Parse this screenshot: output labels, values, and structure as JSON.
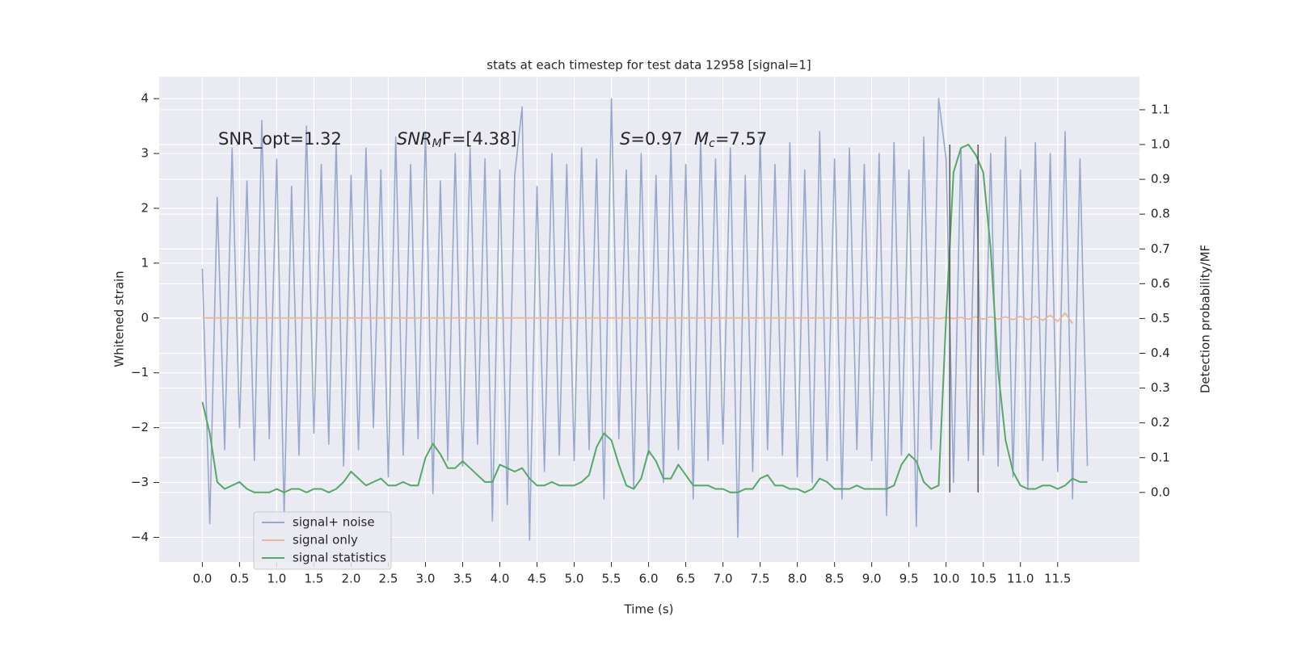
{
  "chart_data": {
    "type": "line",
    "title": "stats at each timestep for test data 12958 [signal=1]",
    "xlabel": "Time (s)",
    "ylabel": "Whitened strain",
    "y2label": "Detection probability/MF",
    "annotations": [
      [
        {
          "text": "SNR_opt=1.32",
          "style": "normal"
        }
      ],
      [
        {
          "text": "SNR",
          "style": "italic"
        },
        {
          "text": "M",
          "style": "sub"
        },
        {
          "text": "F=[4.38]",
          "style": "normal"
        }
      ],
      [
        {
          "text": "S",
          "style": "italic"
        },
        {
          "text": "=0.97",
          "style": "normal"
        }
      ],
      [
        {
          "text": "M",
          "style": "italic"
        },
        {
          "text": "c",
          "style": "sub"
        },
        {
          "text": "=7.57",
          "style": "normal"
        }
      ]
    ],
    "xlim": [
      -0.58,
      12.6
    ],
    "ylim": [
      -4.45,
      4.4
    ],
    "y2lim": [
      -0.2,
      1.195
    ],
    "xticks": [
      {
        "value": 0,
        "label": "0.0"
      },
      0.5,
      {
        "value": 1,
        "label": "1.0"
      },
      1.5,
      {
        "value": 2,
        "label": "2.0"
      },
      2.5,
      {
        "value": 3,
        "label": "3.0"
      },
      3.5,
      {
        "value": 4,
        "label": "4.0"
      },
      4.5,
      {
        "value": 5,
        "label": "5.0"
      },
      5.5,
      {
        "value": 6,
        "label": "6.0"
      },
      6.5,
      {
        "value": 7,
        "label": "7.0"
      },
      7.5,
      {
        "value": 8,
        "label": "8.0"
      },
      8.5,
      {
        "value": 9,
        "label": "9.0"
      },
      9.5,
      {
        "value": 10,
        "label": "10.0"
      },
      10.5,
      {
        "value": 11,
        "label": "11.0"
      },
      11.5
    ],
    "yticks": [
      {
        "value": -4,
        "label": "−4"
      },
      {
        "value": -3,
        "label": "−3"
      },
      {
        "value": -2,
        "label": "−2"
      },
      {
        "value": -1,
        "label": "−1"
      },
      0,
      1,
      2,
      3,
      4
    ],
    "y2ticks": [
      {
        "value": 0,
        "label": "0.0"
      },
      0.1,
      0.2,
      0.3,
      0.4,
      0.5,
      0.6,
      0.7,
      0.8,
      0.9,
      {
        "value": 1,
        "label": "1.0"
      },
      1.1
    ],
    "grid": true,
    "legend": "lower left",
    "vlines": [
      10.05,
      10.43
    ],
    "vline_span": [
      0,
      1.0
    ],
    "vline_color": "#555555",
    "x": [
      0,
      0.1,
      0.2,
      0.3,
      0.4,
      0.5,
      0.6,
      0.7,
      0.8,
      0.9,
      1,
      1.1,
      1.2,
      1.3,
      1.4,
      1.5,
      1.6,
      1.7,
      1.8,
      1.9,
      2,
      2.1,
      2.2,
      2.3,
      2.4,
      2.5,
      2.6,
      2.7,
      2.8,
      2.9,
      3,
      3.1,
      3.2,
      3.3,
      3.4,
      3.5,
      3.6,
      3.7,
      3.8,
      3.9,
      4,
      4.1,
      4.2,
      4.3,
      4.4,
      4.5,
      4.6,
      4.7,
      4.8,
      4.9,
      5,
      5.1,
      5.2,
      5.3,
      5.4,
      5.5,
      5.6,
      5.7,
      5.8,
      5.9,
      6,
      6.1,
      6.2,
      6.3,
      6.4,
      6.5,
      6.6,
      6.7,
      6.8,
      6.9,
      7,
      7.1,
      7.2,
      7.3,
      7.4,
      7.5,
      7.6,
      7.7,
      7.8,
      7.9,
      8,
      8.1,
      8.2,
      8.3,
      8.4,
      8.5,
      8.6,
      8.7,
      8.8,
      8.9,
      9,
      9.1,
      9.2,
      9.3,
      9.4,
      9.5,
      9.6,
      9.7,
      9.8,
      9.9,
      10,
      10.1,
      10.2,
      10.3,
      10.4,
      10.5,
      10.6,
      10.7,
      10.8,
      10.9,
      11,
      11.1,
      11.2,
      11.3,
      11.4,
      11.5,
      11.6,
      11.7,
      11.8,
      11.9
    ],
    "series": [
      {
        "name": "signal+ noise",
        "color": "#98a8cc",
        "values": [
          0.9,
          -3.75,
          2.2,
          -2.4,
          3.1,
          -2.0,
          2.5,
          -2.6,
          3.6,
          -2.2,
          2.9,
          -3.6,
          2.4,
          -2.5,
          3.5,
          -2.1,
          2.8,
          -2.3,
          3.2,
          -2.7,
          2.6,
          -2.4,
          3.1,
          -2.0,
          2.7,
          -2.9,
          3.3,
          -2.5,
          2.8,
          -2.2,
          3.4,
          -3.2,
          2.5,
          -2.6,
          3.0,
          -2.7,
          3.1,
          -2.3,
          2.9,
          -3.7,
          2.7,
          -3.4,
          2.6,
          3.85,
          -4.05,
          2.4,
          -2.8,
          3.0,
          -2.5,
          2.8,
          -2.6,
          3.1,
          -2.4,
          2.9,
          -3.3,
          4.0,
          -2.2,
          2.7,
          -3.1,
          3.0,
          -2.5,
          2.6,
          -3.0,
          3.2,
          -2.4,
          2.8,
          -3.3,
          3.3,
          -2.6,
          2.9,
          -2.3,
          3.1,
          -4.0,
          2.6,
          -2.8,
          3.3,
          -2.4,
          2.8,
          -2.5,
          3.2,
          -2.9,
          2.7,
          -3.0,
          3.4,
          -2.6,
          2.9,
          -3.3,
          3.1,
          -2.4,
          2.8,
          -2.6,
          3.0,
          -3.6,
          3.2,
          -2.5,
          2.7,
          -3.8,
          3.3,
          -2.4,
          4.0,
          2.9,
          -3.0,
          3.1,
          -2.6,
          2.8,
          -2.5,
          3.0,
          -2.7,
          3.3,
          -2.9,
          2.7,
          -3.1,
          3.2,
          -2.6,
          3.0,
          -2.8,
          3.4,
          -3.3,
          2.9,
          -2.7
        ]
      },
      {
        "name": "signal only",
        "color": "#e8b89c",
        "values": [
          0,
          0,
          0,
          0,
          0,
          0,
          0,
          0,
          0,
          0,
          0,
          0,
          0,
          0,
          0,
          0,
          0,
          0,
          0,
          0,
          0,
          0,
          0,
          0,
          0,
          0,
          0,
          0,
          0,
          0,
          0,
          0,
          0,
          0,
          0,
          0,
          0,
          0,
          0,
          0,
          0,
          0,
          0,
          0,
          0,
          0,
          0,
          0,
          0,
          0,
          0,
          0,
          0,
          0,
          0,
          0,
          0,
          0,
          0,
          0,
          0,
          0,
          0,
          0,
          0,
          0,
          0,
          0,
          0,
          0,
          0,
          0,
          0,
          0,
          0,
          0,
          0,
          0,
          0,
          0,
          0,
          0,
          0,
          0,
          0,
          0,
          0,
          0,
          0,
          0,
          0.01,
          -0.01,
          0.01,
          -0.01,
          0.01,
          -0.01,
          0.01,
          -0.01,
          0.01,
          -0.01,
          0.01,
          -0.01,
          0.01,
          -0.02,
          0.02,
          -0.02,
          0.02,
          -0.02,
          0.02,
          -0.03,
          0.03,
          -0.03,
          0.03,
          -0.04,
          0.05,
          -0.06,
          0.09,
          -0.1,
          null,
          null
        ]
      },
      {
        "name": "signal statistics",
        "color": "#55a868",
        "axis": "y2",
        "values": [
          0.26,
          0.17,
          0.03,
          0.01,
          0.02,
          0.03,
          0.01,
          0,
          0,
          0,
          0.01,
          0,
          0.01,
          0.01,
          0,
          0.01,
          0.01,
          0,
          0.01,
          0.03,
          0.06,
          0.04,
          0.02,
          0.03,
          0.04,
          0.02,
          0.02,
          0.03,
          0.02,
          0.02,
          0.1,
          0.14,
          0.11,
          0.07,
          0.07,
          0.09,
          0.07,
          0.05,
          0.03,
          0.03,
          0.08,
          0.07,
          0.06,
          0.07,
          0.04,
          0.02,
          0.02,
          0.03,
          0.02,
          0.02,
          0.02,
          0.03,
          0.05,
          0.13,
          0.17,
          0.15,
          0.08,
          0.02,
          0.01,
          0.04,
          0.12,
          0.09,
          0.04,
          0.04,
          0.08,
          0.05,
          0.02,
          0.02,
          0.02,
          0.01,
          0.01,
          0,
          0,
          0.01,
          0.01,
          0.04,
          0.05,
          0.02,
          0.02,
          0.01,
          0.01,
          0,
          0.01,
          0.04,
          0.03,
          0.01,
          0.01,
          0.01,
          0.02,
          0.01,
          0.01,
          0.01,
          0.01,
          0.02,
          0.08,
          0.11,
          0.09,
          0.03,
          0.01,
          0.02,
          0.5,
          0.92,
          0.99,
          1.0,
          0.97,
          0.92,
          0.7,
          0.35,
          0.15,
          0.06,
          0.02,
          0.01,
          0.01,
          0.02,
          0.02,
          0.01,
          0.02,
          0.04,
          0.03,
          0.03
        ]
      }
    ]
  }
}
